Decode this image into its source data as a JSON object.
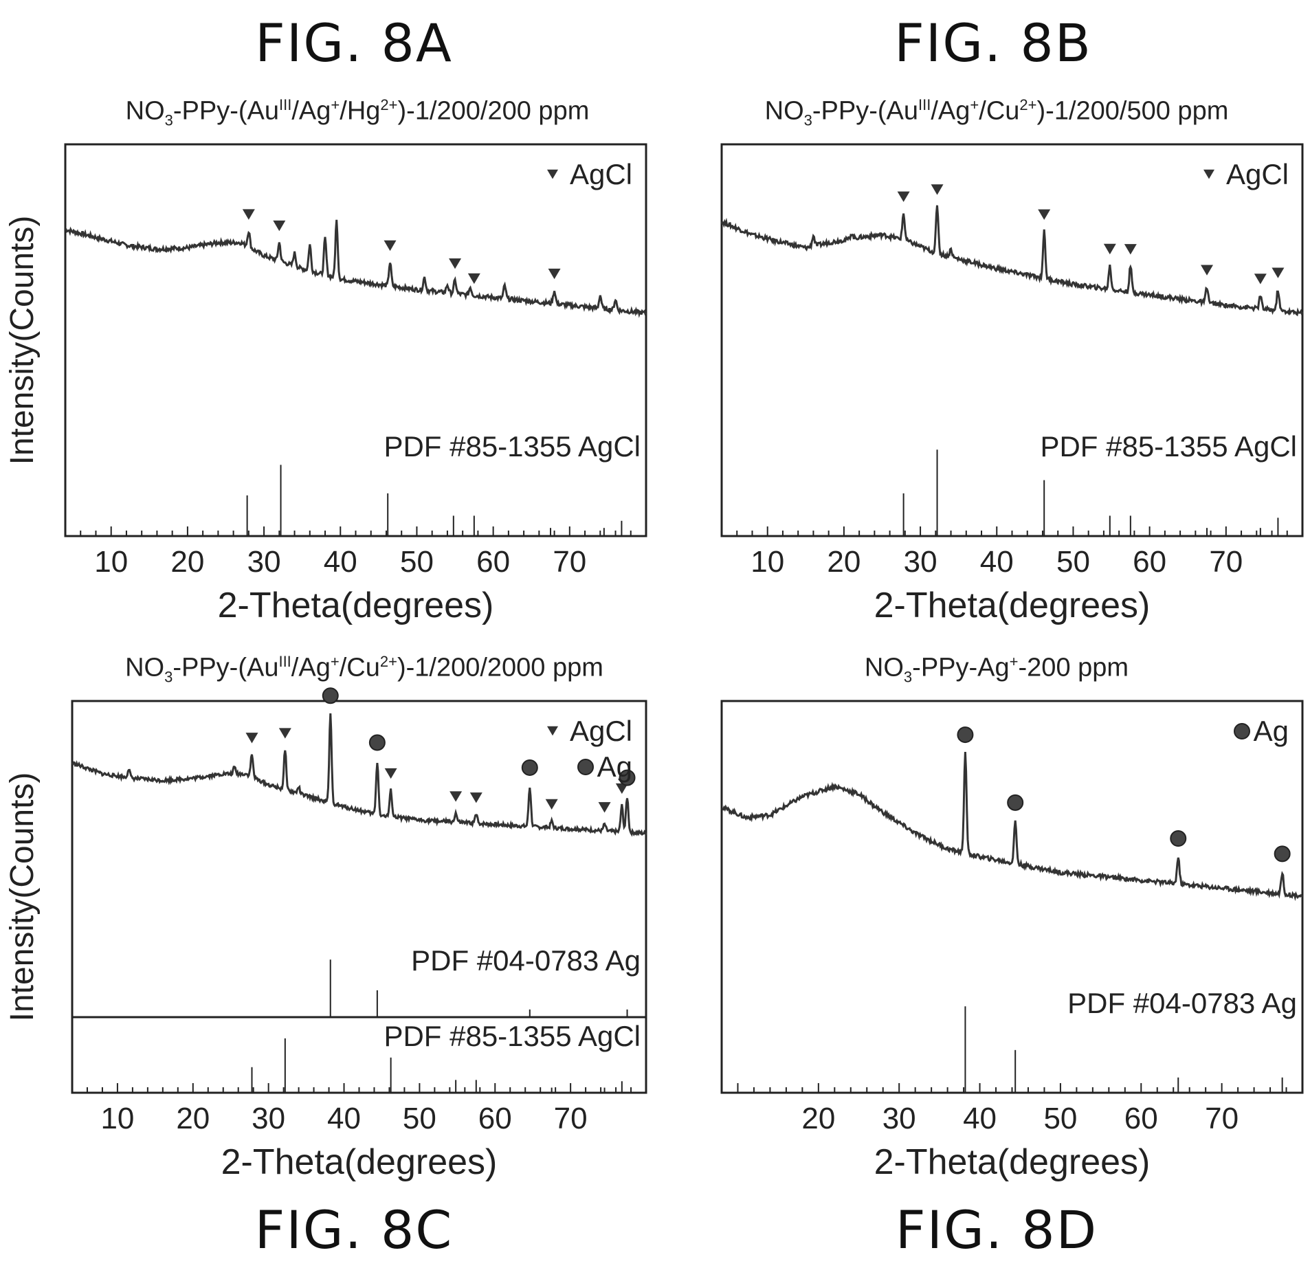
{
  "figures": {
    "a": {
      "label": "FIG. 8A",
      "title_parts": [
        "NO",
        "3",
        "-PPy-(Au",
        "III",
        "/Ag",
        "+",
        "/Hg",
        "2+",
        ")-1/200/200 ppm"
      ]
    },
    "b": {
      "label": "FIG. 8B",
      "title_parts": [
        "NO",
        "3",
        "-PPy-(Au",
        "III",
        "/Ag",
        "+",
        "/Cu",
        "2+",
        ")-1/200/500 ppm"
      ]
    },
    "c": {
      "label": "FIG. 8C",
      "title_parts": [
        "NO",
        "3",
        "-PPy-(Au",
        "III",
        "/Ag",
        "+",
        "/Cu",
        "2+",
        ")-1/200/2000 ppm"
      ]
    },
    "d": {
      "label": "FIG. 8D",
      "title_parts": [
        "NO",
        "3",
        "-PPy-Ag",
        "+",
        "-200 ppm"
      ]
    }
  },
  "colors": {
    "trace": "#333333",
    "axis": "#222222",
    "reference": "#222222"
  },
  "chart_data": [
    {
      "id": "8A",
      "type": "line",
      "xlabel": "2-Theta(degrees)",
      "ylabel": "Intensity(Counts)",
      "xlim": [
        4,
        80
      ],
      "ylim": [
        0,
        100
      ],
      "xticks": [
        10,
        20,
        30,
        40,
        50,
        60,
        70
      ],
      "legend": [
        {
          "symbol": "triangle",
          "label": "AgCl"
        }
      ],
      "legend_placement": "top-right",
      "baseline": [
        [
          4,
          70
        ],
        [
          8,
          67
        ],
        [
          12,
          64
        ],
        [
          16,
          62.5
        ],
        [
          20,
          63
        ],
        [
          24,
          65
        ],
        [
          27,
          65
        ],
        [
          30,
          60
        ],
        [
          35,
          55
        ],
        [
          40,
          51
        ],
        [
          50,
          47
        ],
        [
          60,
          44
        ],
        [
          70,
          41
        ],
        [
          80,
          38
        ]
      ],
      "peaks": [
        [
          28,
          6
        ],
        [
          32,
          7
        ],
        [
          34,
          5
        ],
        [
          36,
          10
        ],
        [
          38,
          14
        ],
        [
          39.5,
          22
        ],
        [
          46.5,
          9
        ],
        [
          51,
          5
        ],
        [
          54,
          3
        ],
        [
          55,
          5
        ],
        [
          57,
          3
        ],
        [
          61.5,
          5
        ],
        [
          68,
          5
        ],
        [
          74,
          5
        ],
        [
          76,
          4
        ]
      ],
      "markers": [
        {
          "x": 28,
          "symbol": "triangle"
        },
        {
          "x": 32,
          "symbol": "triangle"
        },
        {
          "x": 46.5,
          "symbol": "triangle"
        },
        {
          "x": 55,
          "symbol": "triangle"
        },
        {
          "x": 57.5,
          "symbol": "triangle"
        },
        {
          "x": 68,
          "symbol": "triangle"
        }
      ],
      "reference_panels": [
        {
          "label": "PDF #85-1355 AgCl",
          "lines": [
            [
              27.8,
              40
            ],
            [
              32.2,
              70
            ],
            [
              46.2,
              42
            ],
            [
              54.8,
              20
            ],
            [
              57.5,
              20
            ],
            [
              67.5,
              8
            ],
            [
              74.5,
              8
            ],
            [
              76.8,
              15
            ]
          ]
        }
      ]
    },
    {
      "id": "8B",
      "type": "line",
      "xlabel": "2-Theta(degrees)",
      "ylabel": "",
      "xlim": [
        4,
        80
      ],
      "ylim": [
        0,
        100
      ],
      "xticks": [
        10,
        20,
        30,
        40,
        50,
        60,
        70
      ],
      "legend": [
        {
          "symbol": "triangle",
          "label": "AgCl"
        }
      ],
      "legend_placement": "top-right",
      "baseline": [
        [
          4,
          73
        ],
        [
          8,
          68
        ],
        [
          12,
          65
        ],
        [
          15,
          63
        ],
        [
          18,
          65
        ],
        [
          22,
          67
        ],
        [
          25,
          68
        ],
        [
          28,
          66
        ],
        [
          32,
          61
        ],
        [
          40,
          55
        ],
        [
          50,
          49
        ],
        [
          60,
          45
        ],
        [
          70,
          41
        ],
        [
          80,
          38
        ]
      ],
      "peaks": [
        [
          16,
          4
        ],
        [
          21,
          2
        ],
        [
          27.8,
          10
        ],
        [
          32.2,
          18
        ],
        [
          34,
          3
        ],
        [
          46.2,
          18
        ],
        [
          54.8,
          9
        ],
        [
          57.5,
          10
        ],
        [
          67.5,
          6
        ],
        [
          74.5,
          5
        ],
        [
          76.8,
          8
        ]
      ],
      "markers": [
        {
          "x": 27.8,
          "symbol": "triangle"
        },
        {
          "x": 32.2,
          "symbol": "triangle"
        },
        {
          "x": 46.2,
          "symbol": "triangle"
        },
        {
          "x": 54.8,
          "symbol": "triangle"
        },
        {
          "x": 57.5,
          "symbol": "triangle"
        },
        {
          "x": 67.5,
          "symbol": "triangle"
        },
        {
          "x": 74.5,
          "symbol": "triangle"
        },
        {
          "x": 76.8,
          "symbol": "triangle"
        }
      ],
      "reference_panels": [
        {
          "label": "PDF #85-1355 AgCl",
          "lines": [
            [
              27.8,
              42
            ],
            [
              32.2,
              85
            ],
            [
              46.2,
              55
            ],
            [
              54.8,
              20
            ],
            [
              57.5,
              20
            ],
            [
              67.5,
              8
            ],
            [
              74.5,
              8
            ],
            [
              76.8,
              18
            ]
          ]
        }
      ]
    },
    {
      "id": "8C",
      "type": "line",
      "xlabel": "2-Theta(degrees)",
      "ylabel": "Intensity(Counts)",
      "xlim": [
        4,
        80
      ],
      "ylim": [
        0,
        100
      ],
      "xticks": [
        10,
        20,
        30,
        40,
        50,
        60,
        70
      ],
      "legend": [
        {
          "symbol": "triangle",
          "label": "AgCl"
        },
        {
          "symbol": "circle",
          "label": "Ag"
        }
      ],
      "legend_placement": "top-right",
      "baseline": [
        [
          4,
          75
        ],
        [
          8,
          70
        ],
        [
          12,
          68
        ],
        [
          16,
          67
        ],
        [
          20,
          68
        ],
        [
          24,
          70
        ],
        [
          27,
          70
        ],
        [
          30,
          65
        ],
        [
          35,
          60
        ],
        [
          40,
          55
        ],
        [
          45,
          51
        ],
        [
          50,
          49
        ],
        [
          60,
          47
        ],
        [
          70,
          45
        ],
        [
          80,
          43
        ]
      ],
      "peaks": [
        [
          11.5,
          4
        ],
        [
          25.5,
          3
        ],
        [
          27.8,
          10
        ],
        [
          32.2,
          18
        ],
        [
          34,
          3
        ],
        [
          38.2,
          40
        ],
        [
          44.4,
          24
        ],
        [
          46.2,
          12
        ],
        [
          54.8,
          4
        ],
        [
          57.5,
          4
        ],
        [
          64.6,
          18
        ],
        [
          67.5,
          3
        ],
        [
          74.5,
          3
        ],
        [
          76.8,
          12
        ],
        [
          77.5,
          16
        ]
      ],
      "markers": [
        {
          "x": 27.8,
          "symbol": "triangle"
        },
        {
          "x": 32.2,
          "symbol": "triangle"
        },
        {
          "x": 38.2,
          "symbol": "circle"
        },
        {
          "x": 44.4,
          "symbol": "circle"
        },
        {
          "x": 46.2,
          "symbol": "triangle"
        },
        {
          "x": 54.8,
          "symbol": "triangle"
        },
        {
          "x": 57.5,
          "symbol": "triangle"
        },
        {
          "x": 64.6,
          "symbol": "circle"
        },
        {
          "x": 67.5,
          "symbol": "triangle"
        },
        {
          "x": 74.5,
          "symbol": "triangle"
        },
        {
          "x": 76.8,
          "symbol": "triangle"
        },
        {
          "x": 77.5,
          "symbol": "circle"
        }
      ],
      "reference_panels": [
        {
          "label": "PDF #04-0783 Ag",
          "lines": [
            [
              38.2,
              90
            ],
            [
              44.4,
              42
            ],
            [
              64.6,
              12
            ],
            [
              77.5,
              12
            ]
          ]
        },
        {
          "label": "PDF #85-1355 AgCl",
          "lines": [
            [
              27.8,
              40
            ],
            [
              32.2,
              85
            ],
            [
              46.2,
              55
            ],
            [
              54.8,
              20
            ],
            [
              57.5,
              20
            ],
            [
              67.5,
              8
            ],
            [
              74.5,
              8
            ],
            [
              76.8,
              18
            ]
          ]
        }
      ]
    },
    {
      "id": "8D",
      "type": "line",
      "xlabel": "2-Theta(degrees)",
      "ylabel": "",
      "xlim": [
        8,
        80
      ],
      "ylim": [
        0,
        100
      ],
      "xticks": [
        20,
        30,
        40,
        50,
        60,
        70
      ],
      "legend": [
        {
          "symbol": "circle",
          "label": "Ag"
        }
      ],
      "legend_placement": "top-right",
      "baseline": [
        [
          8,
          62
        ],
        [
          11,
          58
        ],
        [
          14,
          59
        ],
        [
          18,
          66
        ],
        [
          22,
          70
        ],
        [
          25,
          67
        ],
        [
          28,
          60
        ],
        [
          32,
          52
        ],
        [
          36,
          46
        ],
        [
          40,
          43
        ],
        [
          45,
          40
        ],
        [
          50,
          37
        ],
        [
          60,
          34
        ],
        [
          70,
          31
        ],
        [
          80,
          28
        ]
      ],
      "peaks": [
        [
          38.2,
          38
        ],
        [
          44.4,
          16
        ],
        [
          64.6,
          10
        ],
        [
          77.5,
          8
        ]
      ],
      "markers": [
        {
          "x": 38.2,
          "symbol": "circle"
        },
        {
          "x": 44.4,
          "symbol": "circle"
        },
        {
          "x": 64.6,
          "symbol": "circle"
        },
        {
          "x": 77.5,
          "symbol": "circle"
        }
      ],
      "reference_panels": [
        {
          "label": "PDF #04-0783 Ag",
          "lines": [
            [
              38.2,
              85
            ],
            [
              44.4,
              42
            ],
            [
              64.6,
              15
            ],
            [
              77.5,
              15
            ]
          ]
        }
      ]
    }
  ]
}
